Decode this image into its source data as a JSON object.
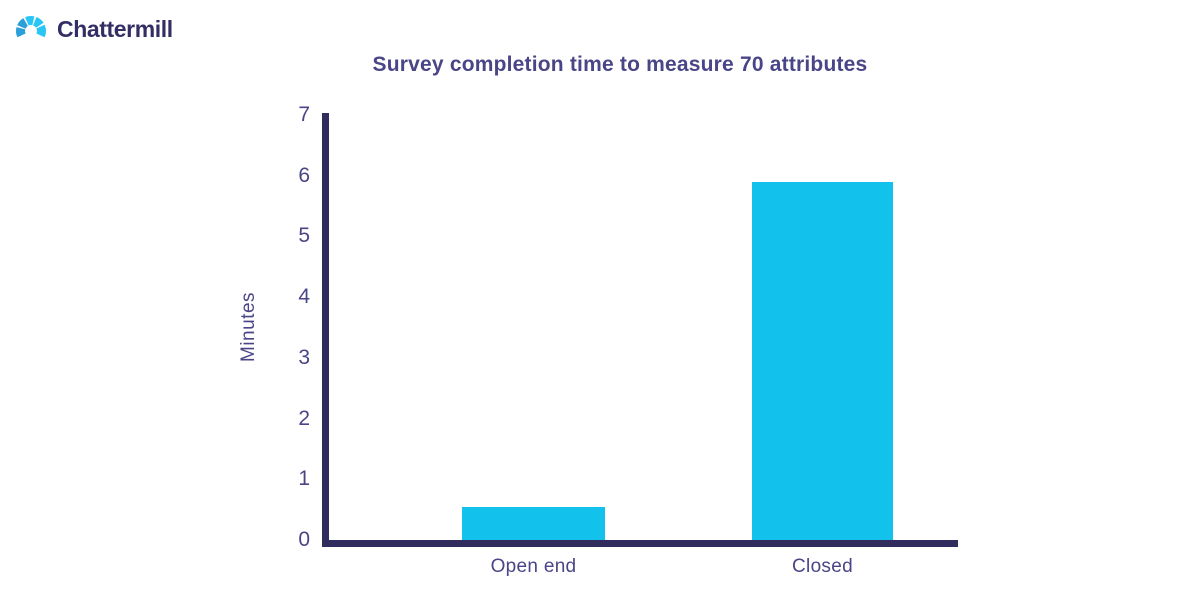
{
  "brand": {
    "name": "Chattermill",
    "wordmark_color": "#332E63",
    "logo_colors": {
      "light": "#29C5F4",
      "dark": "#2B9FD8"
    }
  },
  "chart_data": {
    "type": "bar",
    "title": "Survey completion time to measure 70 attributes",
    "categories": [
      "Open end",
      "Closed"
    ],
    "values": [
      0.55,
      5.9
    ],
    "xlabel": "",
    "ylabel": "Minutes",
    "ylim": [
      0,
      7
    ],
    "yticks": [
      0,
      1,
      2,
      3,
      4,
      5,
      6,
      7
    ],
    "grid": false,
    "legend_position": "none",
    "bar_color": "#12C1EC",
    "axis_color": "#302C5E",
    "label_color": "#4A4586"
  }
}
